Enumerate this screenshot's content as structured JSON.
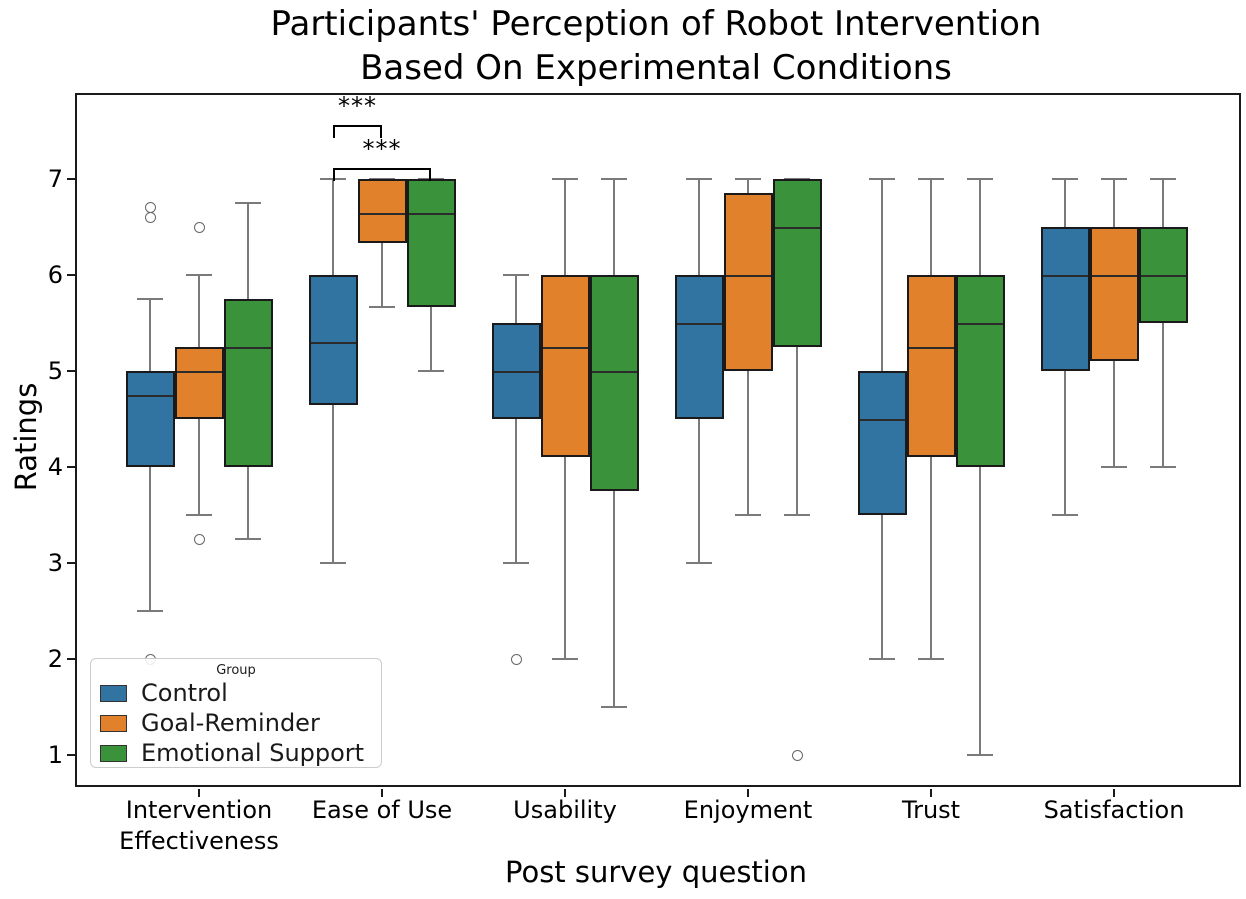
{
  "chart_data": {
    "type": "boxplot",
    "title": "Participants' Perception of Robot Intervention\nBased On Experimental Conditions",
    "xlabel": "Post survey question",
    "ylabel": "Ratings",
    "yticks": [
      1,
      2,
      3,
      4,
      5,
      6,
      7
    ],
    "ylim": [
      0.69,
      7.88
    ],
    "grid": false,
    "categories": [
      "Intervention\nEffectiveness",
      "Ease of Use",
      "Usability",
      "Enjoyment",
      "Trust",
      "Satisfaction"
    ],
    "legend": {
      "title": "Group",
      "position": "lower left"
    },
    "series": [
      {
        "name": "Control",
        "color": "#3274a1",
        "boxes": [
          {
            "whislo": 2.5,
            "q1": 4.0,
            "med": 4.75,
            "q3": 5.0,
            "whishi": 5.75,
            "outliers": [
              6.7,
              6.6,
              2.0
            ]
          },
          {
            "whislo": 3.0,
            "q1": 4.65,
            "med": 5.3,
            "q3": 6.0,
            "whishi": 7.0,
            "outliers": []
          },
          {
            "whislo": 3.0,
            "q1": 4.5,
            "med": 5.0,
            "q3": 5.5,
            "whishi": 6.0,
            "outliers": [
              2.0
            ]
          },
          {
            "whislo": 3.0,
            "q1": 4.5,
            "med": 5.5,
            "q3": 6.0,
            "whishi": 7.0,
            "outliers": []
          },
          {
            "whislo": 2.0,
            "q1": 3.5,
            "med": 4.5,
            "q3": 5.0,
            "whishi": 7.0,
            "outliers": []
          },
          {
            "whislo": 3.5,
            "q1": 5.0,
            "med": 6.0,
            "q3": 6.5,
            "whishi": 7.0,
            "outliers": []
          }
        ]
      },
      {
        "name": "Goal-Reminder",
        "color": "#e1812c",
        "boxes": [
          {
            "whislo": 3.5,
            "q1": 4.5,
            "med": 5.0,
            "q3": 5.25,
            "whishi": 6.0,
            "outliers": [
              6.5,
              3.25
            ]
          },
          {
            "whislo": 5.67,
            "q1": 6.33,
            "med": 6.65,
            "q3": 7.0,
            "whishi": 7.0,
            "outliers": []
          },
          {
            "whislo": 2.0,
            "q1": 4.1,
            "med": 5.25,
            "q3": 6.0,
            "whishi": 7.0,
            "outliers": []
          },
          {
            "whislo": 3.5,
            "q1": 5.0,
            "med": 6.0,
            "q3": 6.85,
            "whishi": 7.0,
            "outliers": []
          },
          {
            "whislo": 2.0,
            "q1": 4.1,
            "med": 5.25,
            "q3": 6.0,
            "whishi": 7.0,
            "outliers": []
          },
          {
            "whislo": 4.0,
            "q1": 5.1,
            "med": 6.0,
            "q3": 6.5,
            "whishi": 7.0,
            "outliers": []
          }
        ]
      },
      {
        "name": "Emotional Support",
        "color": "#3a923a",
        "boxes": [
          {
            "whislo": 3.25,
            "q1": 4.0,
            "med": 5.25,
            "q3": 5.75,
            "whishi": 6.75,
            "outliers": []
          },
          {
            "whislo": 5.0,
            "q1": 5.67,
            "med": 6.65,
            "q3": 7.0,
            "whishi": 7.0,
            "outliers": []
          },
          {
            "whislo": 1.5,
            "q1": 3.75,
            "med": 5.0,
            "q3": 6.0,
            "whishi": 7.0,
            "outliers": []
          },
          {
            "whislo": 3.5,
            "q1": 5.25,
            "med": 6.5,
            "q3": 7.0,
            "whishi": 7.0,
            "outliers": [
              1.0
            ]
          },
          {
            "whislo": 1.0,
            "q1": 4.0,
            "med": 5.5,
            "q3": 6.0,
            "whishi": 7.0,
            "outliers": []
          },
          {
            "whislo": 4.0,
            "q1": 5.5,
            "med": 6.0,
            "q3": 6.5,
            "whishi": 7.0,
            "outliers": []
          }
        ]
      }
    ],
    "significance": [
      {
        "label": "***",
        "category": "Ease of Use",
        "between": [
          "Control",
          "Goal-Reminder"
        ],
        "bar_y": 7.56,
        "tip_y": 7.43,
        "label_y": 7.76
      },
      {
        "label": "***",
        "category": "Ease of Use",
        "between": [
          "Control",
          "Emotional Support"
        ],
        "bar_y": 7.11,
        "tip_y": 6.98,
        "label_y": 7.31
      }
    ]
  },
  "style": {
    "box_edge_color": "#1a1a1a",
    "median_color": "#2b2b2b",
    "whisker_color": "#7a7a7a",
    "spine_color": "#1a1a1a",
    "legend_border_color": "#cccccc"
  }
}
